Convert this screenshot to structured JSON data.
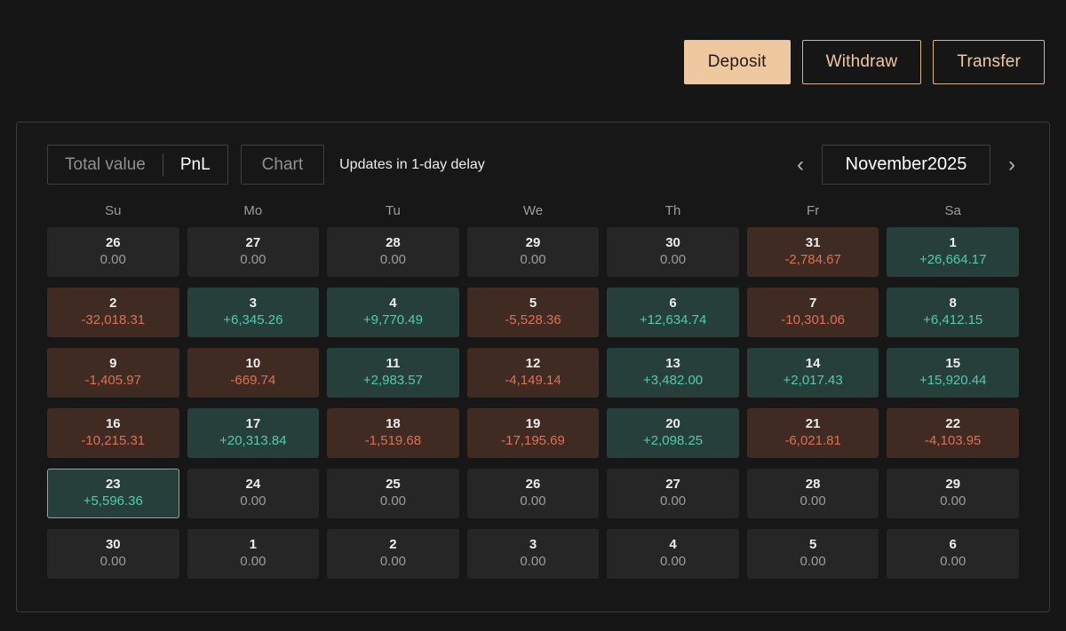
{
  "actions": {
    "deposit_label": "Deposit",
    "withdraw_label": "Withdraw",
    "transfer_label": "Transfer",
    "accent_color": "#eec9a0"
  },
  "panel": {
    "tabs": [
      {
        "label": "Total value",
        "active": false
      },
      {
        "label": "PnL",
        "active": true
      },
      {
        "label": "Chart",
        "active": false
      }
    ],
    "update_note": "Updates in 1-day delay",
    "month_nav": {
      "prev_icon": "‹",
      "label": "November2025",
      "next_icon": "›"
    }
  },
  "calendar": {
    "weekdays": [
      "Su",
      "Mo",
      "Tu",
      "We",
      "Th",
      "Fr",
      "Sa"
    ],
    "colors": {
      "positive_bg": "#273f3a",
      "positive_text": "#4fccaf",
      "negative_bg": "#402b23",
      "negative_text": "#dd7055",
      "neutral_bg": "#272626",
      "neutral_text": "#9c9c9c"
    },
    "cells": [
      {
        "day": "26",
        "value": "0.00",
        "type": "neutral"
      },
      {
        "day": "27",
        "value": "0.00",
        "type": "neutral"
      },
      {
        "day": "28",
        "value": "0.00",
        "type": "neutral"
      },
      {
        "day": "29",
        "value": "0.00",
        "type": "neutral"
      },
      {
        "day": "30",
        "value": "0.00",
        "type": "neutral"
      },
      {
        "day": "31",
        "value": "-2,784.67",
        "type": "neg"
      },
      {
        "day": "1",
        "value": "+26,664.17",
        "type": "pos"
      },
      {
        "day": "2",
        "value": "-32,018.31",
        "type": "neg"
      },
      {
        "day": "3",
        "value": "+6,345.26",
        "type": "pos"
      },
      {
        "day": "4",
        "value": "+9,770.49",
        "type": "pos"
      },
      {
        "day": "5",
        "value": "-5,528.36",
        "type": "neg"
      },
      {
        "day": "6",
        "value": "+12,634.74",
        "type": "pos"
      },
      {
        "day": "7",
        "value": "-10,301.06",
        "type": "neg"
      },
      {
        "day": "8",
        "value": "+6,412.15",
        "type": "pos"
      },
      {
        "day": "9",
        "value": "-1,405.97",
        "type": "neg"
      },
      {
        "day": "10",
        "value": "-669.74",
        "type": "neg"
      },
      {
        "day": "11",
        "value": "+2,983.57",
        "type": "pos"
      },
      {
        "day": "12",
        "value": "-4,149.14",
        "type": "neg"
      },
      {
        "day": "13",
        "value": "+3,482.00",
        "type": "pos"
      },
      {
        "day": "14",
        "value": "+2,017.43",
        "type": "pos"
      },
      {
        "day": "15",
        "value": "+15,920.44",
        "type": "pos"
      },
      {
        "day": "16",
        "value": "-10,215.31",
        "type": "neg"
      },
      {
        "day": "17",
        "value": "+20,313.84",
        "type": "pos"
      },
      {
        "day": "18",
        "value": "-1,519.68",
        "type": "neg"
      },
      {
        "day": "19",
        "value": "-17,195.69",
        "type": "neg"
      },
      {
        "day": "20",
        "value": "+2,098.25",
        "type": "pos"
      },
      {
        "day": "21",
        "value": "-6,021.81",
        "type": "neg"
      },
      {
        "day": "22",
        "value": "-4,103.95",
        "type": "neg"
      },
      {
        "day": "23",
        "value": "+5,596.36",
        "type": "pos",
        "selected": true
      },
      {
        "day": "24",
        "value": "0.00",
        "type": "neutral"
      },
      {
        "day": "25",
        "value": "0.00",
        "type": "neutral"
      },
      {
        "day": "26",
        "value": "0.00",
        "type": "neutral"
      },
      {
        "day": "27",
        "value": "0.00",
        "type": "neutral"
      },
      {
        "day": "28",
        "value": "0.00",
        "type": "neutral"
      },
      {
        "day": "29",
        "value": "0.00",
        "type": "neutral"
      },
      {
        "day": "30",
        "value": "0.00",
        "type": "neutral"
      },
      {
        "day": "1",
        "value": "0.00",
        "type": "neutral"
      },
      {
        "day": "2",
        "value": "0.00",
        "type": "neutral"
      },
      {
        "day": "3",
        "value": "0.00",
        "type": "neutral"
      },
      {
        "day": "4",
        "value": "0.00",
        "type": "neutral"
      },
      {
        "day": "5",
        "value": "0.00",
        "type": "neutral"
      },
      {
        "day": "6",
        "value": "0.00",
        "type": "neutral"
      }
    ]
  }
}
